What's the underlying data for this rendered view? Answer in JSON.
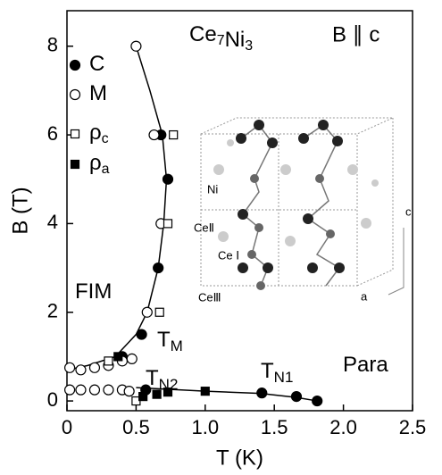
{
  "chart_data": {
    "type": "scatter",
    "title": {
      "parts": [
        {
          "text": "Ce",
          "sub": "7"
        },
        {
          "text": "Ni",
          "sub": "3"
        }
      ]
    },
    "subtitle": "B ∥ c",
    "x_label": "T (K)",
    "y_label": "B (T)",
    "xlim": [
      0,
      2.5
    ],
    "ylim": [
      -0.22,
      8.8
    ],
    "xticks": [
      0,
      0.5,
      {
        "value": 1,
        "label": "1.0"
      },
      1.5,
      {
        "value": 2,
        "label": "2.0"
      },
      2.5
    ],
    "yticks": [
      0,
      2,
      4,
      6,
      8
    ],
    "series": [
      {
        "name": "C",
        "marker": "circle",
        "filled": true,
        "color": "#000000",
        "x": [
          0.68,
          0.73,
          0.66,
          0.54,
          0.4,
          0.57,
          1.41,
          1.66,
          1.81
        ],
        "y": [
          6,
          5,
          3,
          1.5,
          1.0,
          0.25,
          0.18,
          0.1,
          0
        ]
      },
      {
        "name": "M",
        "marker": "circle",
        "filled": false,
        "color": "#000000",
        "x": [
          0.5,
          0.63,
          0.68,
          0.58,
          0.02,
          0.1,
          0.2,
          0.3,
          0.4,
          0.47,
          0.02,
          0.1,
          0.2,
          0.3,
          0.4,
          0.45
        ],
        "y": [
          8,
          6,
          4,
          2,
          0.75,
          0.7,
          0.75,
          0.8,
          0.9,
          0.95,
          0.25,
          0.25,
          0.25,
          0.25,
          0.25,
          0.22
        ]
      },
      {
        "name": "ρ",
        "name_sub": "c",
        "marker": "square",
        "filled": false,
        "color": "#000000",
        "x": [
          0.77,
          0.73,
          0.67,
          0.3,
          0.5
        ],
        "y": [
          6,
          4,
          2,
          0.9,
          0
        ]
      },
      {
        "name": "ρ",
        "name_sub": "a",
        "marker": "square",
        "filled": true,
        "color": "#000000",
        "x": [
          0.37,
          0.55,
          0.65,
          0.73,
          1.0
        ],
        "y": [
          1.0,
          0.1,
          0.15,
          0.2,
          0.22
        ]
      }
    ],
    "curves": [
      {
        "x": [
          0.5,
          0.6,
          0.69,
          0.72,
          0.7,
          0.66,
          0.58,
          0.5,
          0.35,
          0.15,
          0
        ],
        "y": [
          8,
          7,
          6,
          5,
          4,
          3,
          2,
          1.5,
          1.0,
          0.8,
          0.7
        ]
      },
      {
        "x": [
          0.5,
          1.0,
          1.4,
          1.66,
          1.81
        ],
        "y": [
          0.3,
          0.22,
          0.17,
          0.08,
          0
        ]
      }
    ],
    "annotations": [
      {
        "text": "FIM"
      },
      {
        "text": "T",
        "sub": "M"
      },
      {
        "text": "T",
        "sub": "N2"
      },
      {
        "text": "T",
        "sub": "N1"
      },
      {
        "text": "Para"
      }
    ],
    "inset_labels": [
      "Ni",
      "CeⅡ",
      "Ce Ⅰ",
      "CeⅢ",
      "c",
      "a"
    ]
  }
}
